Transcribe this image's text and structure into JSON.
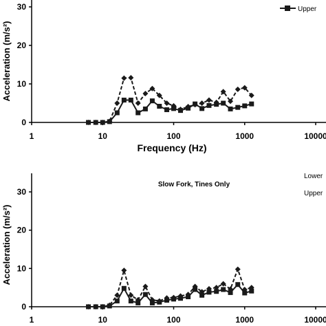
{
  "chart_data": [
    {
      "type": "line",
      "title": "",
      "xlabel": "Frequency (Hz)",
      "ylabel": "Acceleration (m/s²)",
      "xscale": "log",
      "xlim": [
        1,
        10000
      ],
      "ylim": [
        0,
        30
      ],
      "x_tick_labels": [
        "1",
        "10",
        "100",
        "1000",
        "10000"
      ],
      "y_tick_labels": [
        "0",
        "10",
        "20",
        "30"
      ],
      "legend_placement": "top-right",
      "legend": [
        "Upper"
      ],
      "series": [
        {
          "name": "Upper",
          "style": "solid",
          "marker": "square",
          "x": [
            6.3,
            8,
            10,
            12.5,
            16,
            20,
            25,
            31.5,
            40,
            50,
            63,
            80,
            100,
            125,
            160,
            200,
            250,
            315,
            400,
            500,
            630,
            800,
            1000,
            1250
          ],
          "y": [
            0,
            0,
            0,
            0.2,
            2.5,
            5.8,
            5.8,
            2.5,
            3.5,
            5.6,
            4.2,
            3.3,
            3.6,
            3.1,
            3.7,
            4.8,
            3.6,
            4.4,
            4.7,
            5.0,
            3.5,
            3.9,
            4.3,
            4.8
          ]
        },
        {
          "name": "",
          "style": "dashed",
          "marker": "diamond",
          "x": [
            6.3,
            8,
            10,
            12.5,
            16,
            20,
            25,
            31.5,
            40,
            50,
            63,
            80,
            100,
            125,
            160,
            200,
            250,
            315,
            400,
            500,
            630,
            800,
            1000,
            1250
          ],
          "y": [
            0,
            0,
            0,
            0.3,
            5.0,
            11.5,
            11.6,
            5.0,
            7.5,
            8.8,
            7.0,
            5.0,
            4.3,
            3.4,
            4.1,
            4.6,
            5.0,
            5.8,
            5.2,
            8.0,
            5.5,
            8.6,
            9.0,
            7.0
          ]
        }
      ]
    },
    {
      "type": "line",
      "title": "Slow Fork, Tines Only",
      "xlabel": "",
      "ylabel": "Acceleration (m/s²)",
      "xscale": "log",
      "xlim": [
        1,
        10000
      ],
      "ylim": [
        0,
        30
      ],
      "x_tick_labels": [
        "1",
        "10",
        "100",
        "1000",
        "10000"
      ],
      "y_tick_labels": [
        "0",
        "10",
        "20",
        "30"
      ],
      "legend_placement": "top-right",
      "legend": [
        "Lower",
        "Upper"
      ],
      "series": [
        {
          "name": "",
          "style": "solid",
          "marker": "square",
          "x": [
            6.3,
            8,
            10,
            12.5,
            16,
            20,
            25,
            31.5,
            40,
            50,
            63,
            80,
            100,
            125,
            160,
            200,
            250,
            315,
            400,
            500,
            630,
            800,
            1000,
            1250
          ],
          "y": [
            0,
            0,
            0,
            0.2,
            1.5,
            4.8,
            1.5,
            1.0,
            3.2,
            1.0,
            1.2,
            1.7,
            2.0,
            2.2,
            2.6,
            4.5,
            3.0,
            3.8,
            4.0,
            4.5,
            3.7,
            5.8,
            3.6,
            4.1
          ]
        },
        {
          "name": "",
          "style": "dashed",
          "marker": "diamond",
          "x": [
            6.3,
            8,
            10,
            12.5,
            16,
            20,
            25,
            31.5,
            40,
            50,
            63,
            80,
            100,
            125,
            160,
            200,
            250,
            315,
            400,
            500,
            630,
            800,
            1000,
            1250
          ],
          "y": [
            0,
            0,
            0,
            0.4,
            3.0,
            9.5,
            3.0,
            1.8,
            5.3,
            1.8,
            1.5,
            2.3,
            2.4,
            2.8,
            3.2,
            5.3,
            3.9,
            4.7,
            5.0,
            6.0,
            4.6,
            9.8,
            4.5,
            5.0
          ]
        }
      ]
    }
  ],
  "colors": {
    "lines": "#1a1a1a",
    "axes": "#000000",
    "background": "#ffffff"
  }
}
